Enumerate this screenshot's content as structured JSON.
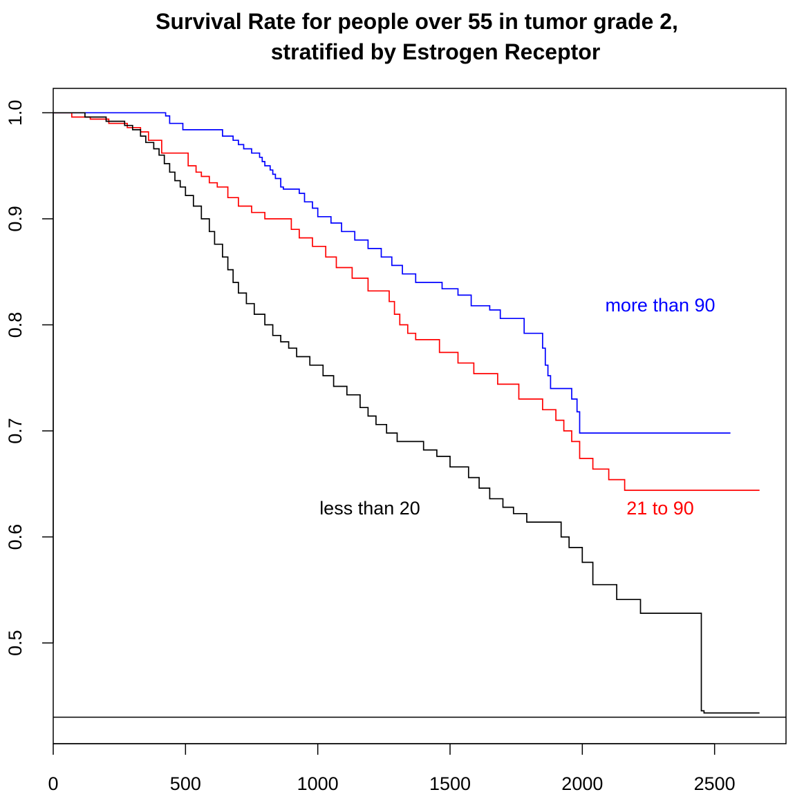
{
  "chart_data": {
    "type": "line",
    "step": true,
    "title_lines": [
      "Survival Rate for people over 55 in tumor grade 2,",
      "stratified by Estrogen Receptor"
    ],
    "xlabel": "",
    "ylabel": "",
    "xlim": [
      0,
      2770
    ],
    "ylim": [
      0.405,
      1.023
    ],
    "x_ticks": [
      0,
      500,
      1000,
      1500,
      2000,
      2500
    ],
    "y_ticks": [
      0.5,
      0.6,
      0.7,
      0.8,
      0.9,
      1.0
    ],
    "y_tick_labels": [
      "0.5",
      "0.6",
      "0.7",
      "0.8",
      "0.9",
      "1.0"
    ],
    "grid": false,
    "hline": 0.43,
    "series": [
      {
        "name": "more than 90",
        "color": "#0000ff",
        "label_at": [
          1000,
          0.82
        ],
        "x": [
          0,
          425,
          440,
          490,
          640,
          680,
          700,
          720,
          750,
          780,
          790,
          800,
          820,
          830,
          840,
          860,
          870,
          900,
          930,
          950,
          980,
          1000,
          1050,
          1090,
          1140,
          1190,
          1240,
          1280,
          1320,
          1370,
          1470,
          1530,
          1580,
          1650,
          1690,
          1780,
          1850,
          1860,
          1870,
          1880,
          1960,
          1980,
          1990,
          2560
        ],
        "y": [
          1.0,
          0.997,
          0.99,
          0.984,
          0.978,
          0.974,
          0.97,
          0.966,
          0.962,
          0.958,
          0.954,
          0.95,
          0.946,
          0.942,
          0.938,
          0.93,
          0.928,
          0.928,
          0.924,
          0.916,
          0.91,
          0.902,
          0.896,
          0.888,
          0.88,
          0.872,
          0.864,
          0.856,
          0.848,
          0.84,
          0.834,
          0.828,
          0.818,
          0.814,
          0.806,
          0.792,
          0.778,
          0.762,
          0.752,
          0.74,
          0.73,
          0.718,
          0.698,
          0.698
        ]
      },
      {
        "name": "21 to 90",
        "color": "#ff0000",
        "label_at": [
          1000,
          0.63
        ],
        "x": [
          0,
          70,
          140,
          210,
          280,
          330,
          360,
          410,
          510,
          540,
          560,
          590,
          620,
          660,
          700,
          750,
          800,
          880,
          900,
          930,
          980,
          1030,
          1070,
          1130,
          1190,
          1270,
          1290,
          1310,
          1340,
          1370,
          1460,
          1530,
          1590,
          1680,
          1760,
          1850,
          1900,
          1930,
          1960,
          1990,
          2040,
          2100,
          2160,
          2670
        ],
        "y": [
          1.0,
          0.996,
          0.994,
          0.99,
          0.986,
          0.982,
          0.974,
          0.962,
          0.95,
          0.944,
          0.94,
          0.934,
          0.93,
          0.92,
          0.912,
          0.906,
          0.9,
          0.9,
          0.89,
          0.882,
          0.874,
          0.864,
          0.854,
          0.844,
          0.832,
          0.822,
          0.81,
          0.8,
          0.792,
          0.786,
          0.774,
          0.764,
          0.754,
          0.744,
          0.73,
          0.72,
          0.71,
          0.7,
          0.69,
          0.674,
          0.664,
          0.654,
          0.644,
          0.644
        ]
      },
      {
        "name": "less than 20",
        "color": "#000000",
        "label_at": [
          1000,
          0.63
        ],
        "x": [
          0,
          120,
          200,
          270,
          300,
          330,
          350,
          380,
          400,
          420,
          440,
          460,
          480,
          500,
          530,
          560,
          590,
          610,
          640,
          660,
          680,
          700,
          730,
          760,
          800,
          830,
          860,
          890,
          920,
          970,
          1020,
          1060,
          1110,
          1160,
          1190,
          1220,
          1260,
          1300,
          1400,
          1450,
          1500,
          1570,
          1610,
          1650,
          1700,
          1740,
          1790,
          1920,
          1950,
          2000,
          2040,
          2130,
          2220,
          2450,
          2460,
          2670
        ],
        "y": [
          1.0,
          0.996,
          0.992,
          0.988,
          0.984,
          0.978,
          0.972,
          0.966,
          0.96,
          0.952,
          0.944,
          0.936,
          0.93,
          0.922,
          0.912,
          0.9,
          0.888,
          0.876,
          0.864,
          0.852,
          0.84,
          0.83,
          0.82,
          0.81,
          0.8,
          0.79,
          0.784,
          0.778,
          0.77,
          0.762,
          0.752,
          0.742,
          0.734,
          0.722,
          0.714,
          0.706,
          0.698,
          0.69,
          0.682,
          0.676,
          0.666,
          0.656,
          0.646,
          0.636,
          0.628,
          0.622,
          0.614,
          0.6,
          0.59,
          0.576,
          0.555,
          0.541,
          0.528,
          0.436,
          0.434,
          0.434
        ]
      }
    ],
    "series_labels": [
      {
        "text": "more than 90",
        "color": "#0000ff",
        "x": 2300,
        "y": 0.82
      },
      {
        "text": "21 to 90",
        "color": "#ff0000",
        "x": 2300,
        "y": 0.63
      },
      {
        "text": "less than 20",
        "color": "#000000",
        "x": 1200,
        "y": 0.63
      }
    ]
  }
}
